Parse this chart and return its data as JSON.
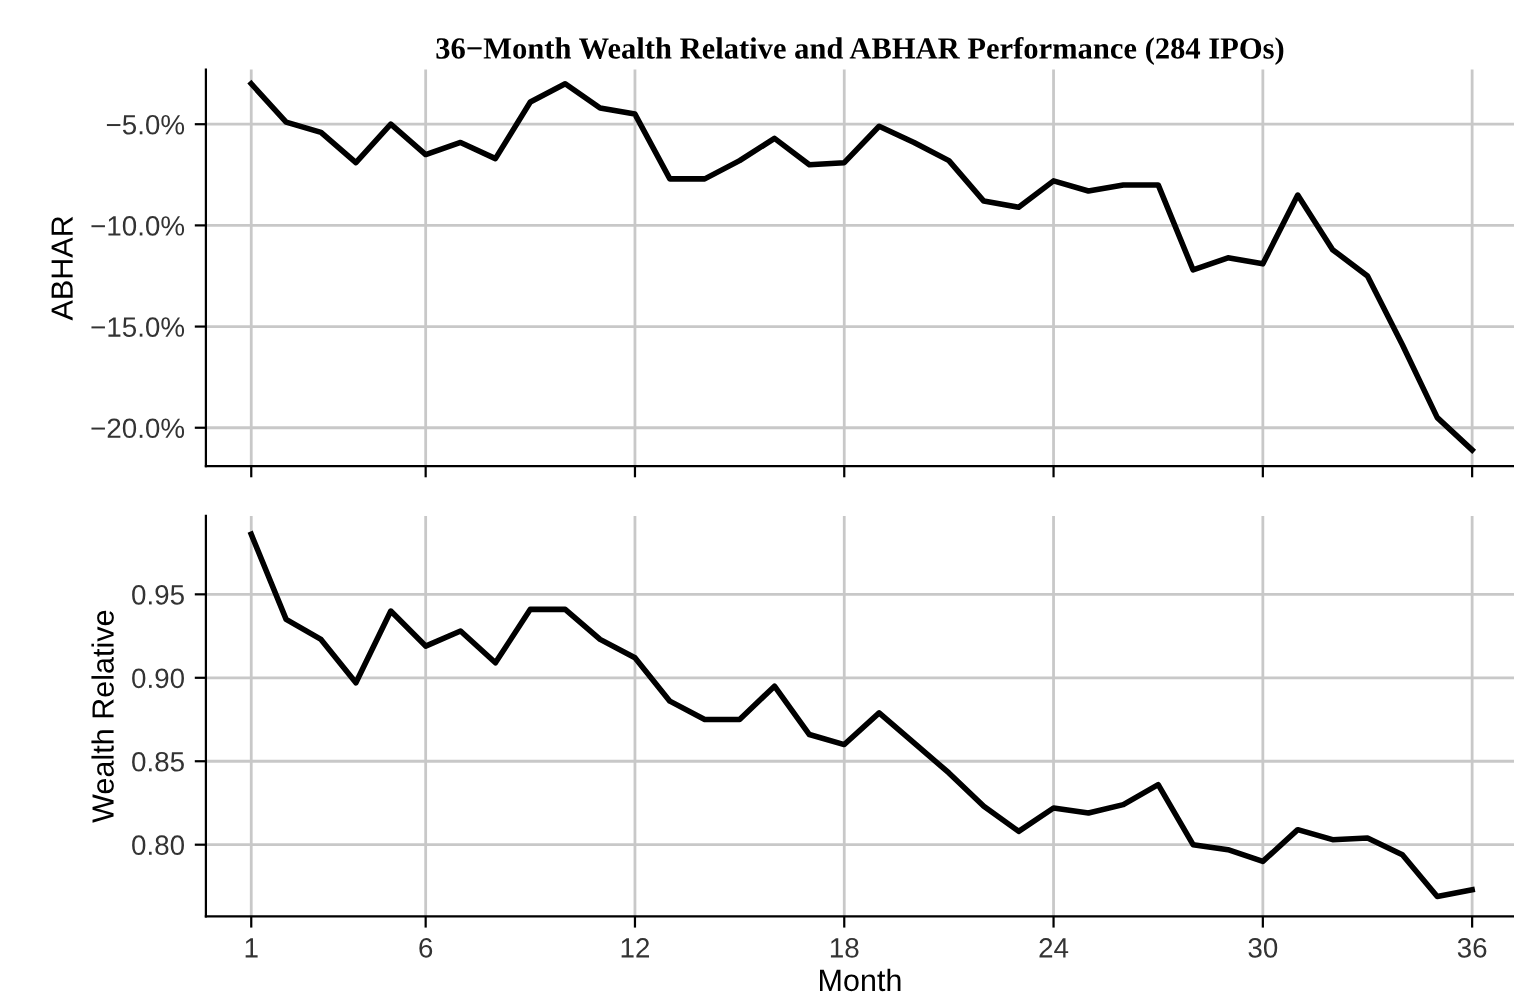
{
  "chart_data": [
    {
      "type": "line",
      "title": "36−Month Wealth Relative and ABHAR Performance (284 IPOs)",
      "ylabel": "ABHAR",
      "tick_labels": "y",
      "grid": true,
      "x": [
        1,
        2,
        3,
        4,
        5,
        6,
        7,
        8,
        9,
        10,
        11,
        12,
        13,
        14,
        15,
        16,
        17,
        18,
        19,
        20,
        21,
        22,
        23,
        24,
        25,
        26,
        27,
        28,
        29,
        30,
        31,
        32,
        33,
        34,
        35,
        36
      ],
      "series": [
        {
          "color": "#000000",
          "values": [
            -3.0,
            -4.9,
            -5.4,
            -6.9,
            -5.0,
            -6.5,
            -5.9,
            -6.7,
            -3.9,
            -3.0,
            -4.2,
            -4.5,
            -7.7,
            -7.7,
            -6.8,
            -5.7,
            -7.0,
            -6.9,
            -5.1,
            -5.9,
            -6.8,
            -8.8,
            -9.1,
            -7.8,
            -8.3,
            -8.0,
            -8.0,
            -12.2,
            -11.6,
            -11.9,
            -8.5,
            -11.2,
            -12.5,
            -15.9,
            -19.5,
            -21.1
          ]
        }
      ],
      "xlim": [
        -0.3,
        37.2
      ],
      "xticks": [
        1,
        6,
        12,
        18,
        24,
        30,
        36
      ],
      "ylim": [
        -21.9,
        -2.3
      ],
      "yticks": [
        {
          "value": -20,
          "label": "−20.0%"
        },
        {
          "value": -15,
          "label": "−15.0%"
        },
        {
          "value": -10,
          "label": "−10.0%"
        },
        {
          "value": -5,
          "label": "−5.0%"
        }
      ]
    },
    {
      "type": "line",
      "xlabel": "Month",
      "ylabel": "Wealth Relative",
      "grid": true,
      "x": [
        1,
        2,
        3,
        4,
        5,
        6,
        7,
        8,
        9,
        10,
        11,
        12,
        13,
        14,
        15,
        16,
        17,
        18,
        19,
        20,
        21,
        22,
        23,
        24,
        25,
        26,
        27,
        28,
        29,
        30,
        31,
        32,
        33,
        34,
        35,
        36
      ],
      "series": [
        {
          "color": "#000000",
          "values": [
            0.986,
            0.935,
            0.923,
            0.897,
            0.94,
            0.919,
            0.928,
            0.909,
            0.941,
            0.941,
            0.923,
            0.912,
            0.886,
            0.875,
            0.875,
            0.895,
            0.866,
            0.86,
            0.879,
            0.861,
            0.843,
            0.823,
            0.808,
            0.822,
            0.819,
            0.824,
            0.836,
            0.8,
            0.797,
            0.79,
            0.809,
            0.803,
            0.804,
            0.794,
            0.769,
            0.773
          ]
        }
      ],
      "xlim": [
        -0.3,
        37.2
      ],
      "xticks": [
        1,
        6,
        12,
        18,
        24,
        30,
        36
      ],
      "ylim": [
        0.757,
        0.997
      ],
      "yticks": [
        {
          "value": 0.8,
          "label": "0.80"
        },
        {
          "value": 0.85,
          "label": "0.85"
        },
        {
          "value": 0.9,
          "label": "0.90"
        },
        {
          "value": 0.95,
          "label": "0.95"
        }
      ]
    }
  ]
}
